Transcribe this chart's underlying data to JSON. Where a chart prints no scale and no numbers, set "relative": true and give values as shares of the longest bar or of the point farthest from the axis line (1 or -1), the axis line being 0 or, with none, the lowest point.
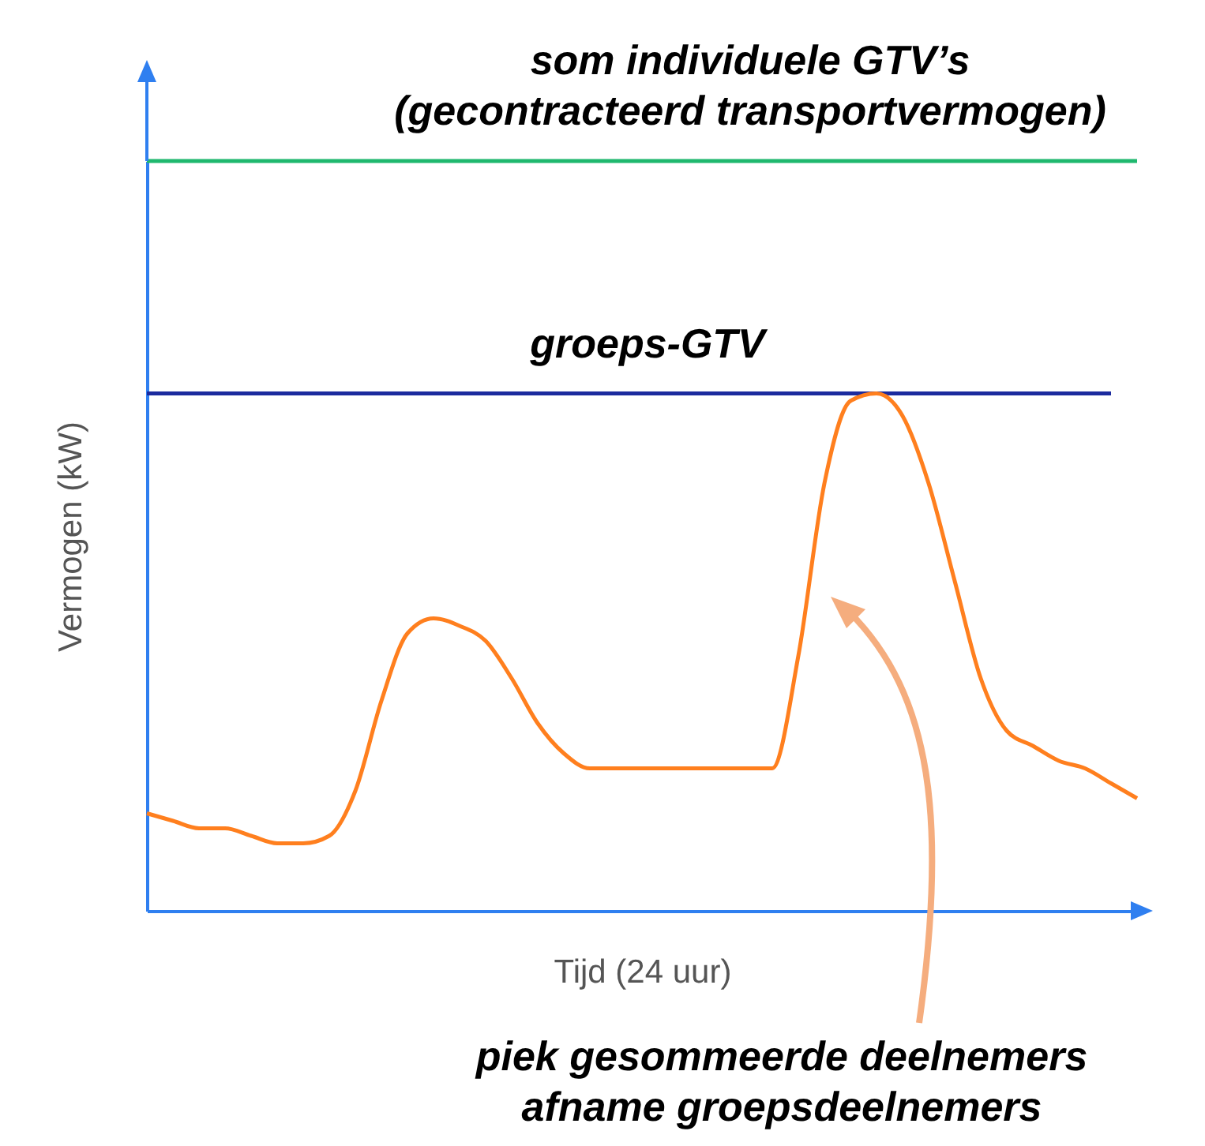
{
  "chart_data": {
    "type": "line",
    "relative": true,
    "xlabel": "Tijd (24 uur)",
    "ylabel": "Vermogen (kW)",
    "categories": [
      null,
      null,
      null,
      null,
      null,
      null,
      null,
      null,
      null,
      null,
      null,
      null,
      null,
      null,
      null,
      null,
      null,
      null,
      null,
      null,
      null,
      null,
      null,
      null,
      null,
      null,
      null,
      null,
      null,
      null,
      null,
      null,
      null,
      null,
      null,
      null,
      null,
      null,
      null
    ],
    "series": [
      {
        "name": "som individuele GTV’s\n(gecontracteerd transportvermogen)",
        "color": "#1fb86e",
        "values": [
          1,
          1,
          1,
          1,
          1,
          1,
          1,
          1,
          1,
          1,
          1,
          1,
          1,
          1,
          1,
          1,
          1,
          1,
          1,
          1,
          1,
          1,
          1,
          1,
          1,
          1,
          1,
          1,
          1,
          1,
          1,
          1,
          1,
          1,
          1,
          1,
          1,
          1,
          1
        ]
      },
      {
        "name": "groeps-GTV",
        "color": "#1c2b9e",
        "values": [
          0.69,
          0.69,
          0.69,
          0.69,
          0.69,
          0.69,
          0.69,
          0.69,
          0.69,
          0.69,
          0.69,
          0.69,
          0.69,
          0.69,
          0.69,
          0.69,
          0.69,
          0.69,
          0.69,
          0.69,
          0.69,
          0.69,
          0.69,
          0.69,
          0.69,
          0.69,
          0.69,
          0.69,
          0.69,
          0.69,
          0.69,
          0.69,
          0.69,
          0.69,
          0.69,
          0.69,
          0.69,
          0.69,
          null
        ]
      },
      {
        "color": "#ff7f1e",
        "values": [
          0.13,
          0.12,
          0.11,
          0.11,
          0.1,
          0.09,
          0.09,
          0.1,
          0.16,
          0.28,
          0.37,
          0.39,
          0.38,
          0.36,
          0.31,
          0.25,
          0.21,
          0.19,
          0.19,
          0.19,
          0.19,
          0.19,
          0.19,
          0.19,
          0.19,
          0.34,
          0.57,
          0.68,
          0.69,
          0.66,
          0.57,
          0.44,
          0.31,
          0.24,
          0.22,
          0.2,
          0.19,
          0.17,
          0.15
        ]
      }
    ],
    "annotations": [
      "piek gesommeerde deelnemers\nafname groepsdeelnemers"
    ]
  }
}
